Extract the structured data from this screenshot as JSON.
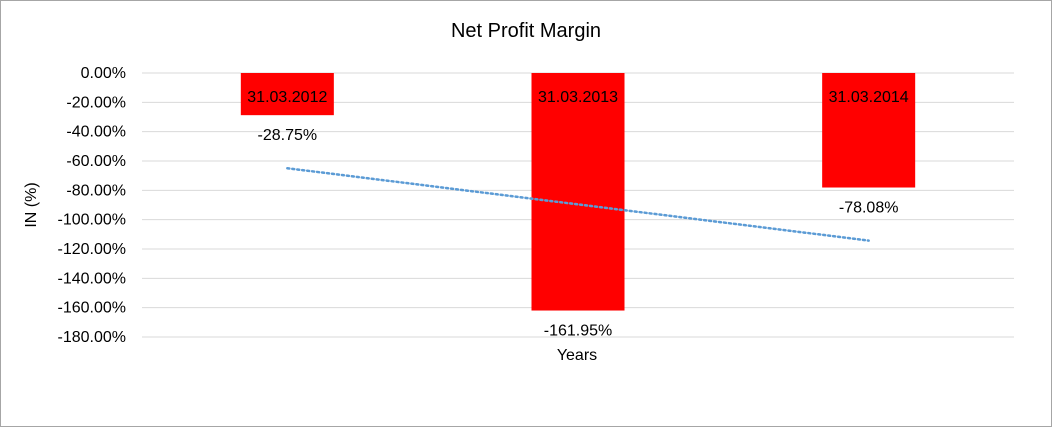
{
  "chart_data": {
    "type": "bar",
    "title": "Net Profit Margin",
    "xlabel": "Years",
    "ylabel": "IN (%)",
    "categories": [
      "31.03.2012",
      "31.03.2013",
      "31.03.2014"
    ],
    "values": [
      -28.75,
      -161.95,
      -78.08
    ],
    "data_labels": [
      "-28.75%",
      "-161.95%",
      "-78.08%"
    ],
    "ylim": [
      -180,
      0
    ],
    "yticks": [
      0,
      -20,
      -40,
      -60,
      -80,
      -100,
      -120,
      -140,
      -160,
      -180
    ],
    "ytick_labels": [
      "0.00%",
      "-20.00%",
      "-40.00%",
      "-60.00%",
      "-80.00%",
      "-100.00%",
      "-120.00%",
      "-140.00%",
      "-160.00%",
      "-180.00%"
    ],
    "grid": true,
    "bar_color": "#ff0000",
    "trendline": {
      "type": "linear",
      "color": "#5b9bd5",
      "style": "dotted"
    }
  }
}
